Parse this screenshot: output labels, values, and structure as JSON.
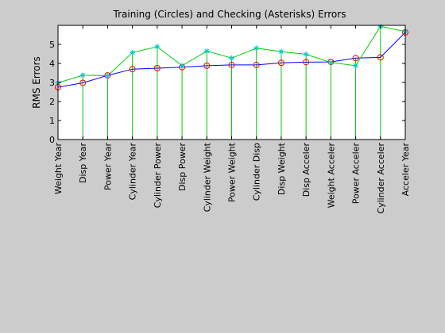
{
  "chart_data": {
    "type": "line",
    "title": "Training (Circles) and Checking (Asterisks) Errors",
    "xlabel": "",
    "ylabel": "RMS Errors",
    "ylim": [
      0,
      6
    ],
    "yticks": [
      0,
      1,
      2,
      3,
      4,
      5
    ],
    "grid": false,
    "categories": [
      "Weight Year",
      "Disp Year",
      "Power Year",
      "Cylinder Year",
      "Cylinder Power",
      "Disp Power",
      "Cylinder Weight",
      "Power Weight",
      "Cylinder Disp",
      "Disp Weight",
      "Disp Acceler",
      "Weight Acceler",
      "Power Acceler",
      "Cylinder Acceler",
      "Acceler Year"
    ],
    "series": [
      {
        "marker": "circle",
        "color": "#0000ff",
        "marker_color": "#ff0000",
        "values": [
          2.75,
          2.98,
          3.37,
          3.7,
          3.75,
          3.8,
          3.88,
          3.92,
          3.92,
          4.03,
          4.07,
          4.08,
          4.28,
          4.32,
          5.63
        ]
      },
      {
        "marker": "asterisk",
        "color": "#00cc00",
        "marker_color": "#00cccc",
        "values": [
          2.98,
          3.38,
          3.35,
          4.57,
          4.88,
          3.88,
          4.65,
          4.28,
          4.8,
          4.62,
          4.48,
          4.05,
          3.88,
          5.95,
          5.68
        ]
      }
    ],
    "stems": {
      "color": "#00cc00"
    }
  }
}
